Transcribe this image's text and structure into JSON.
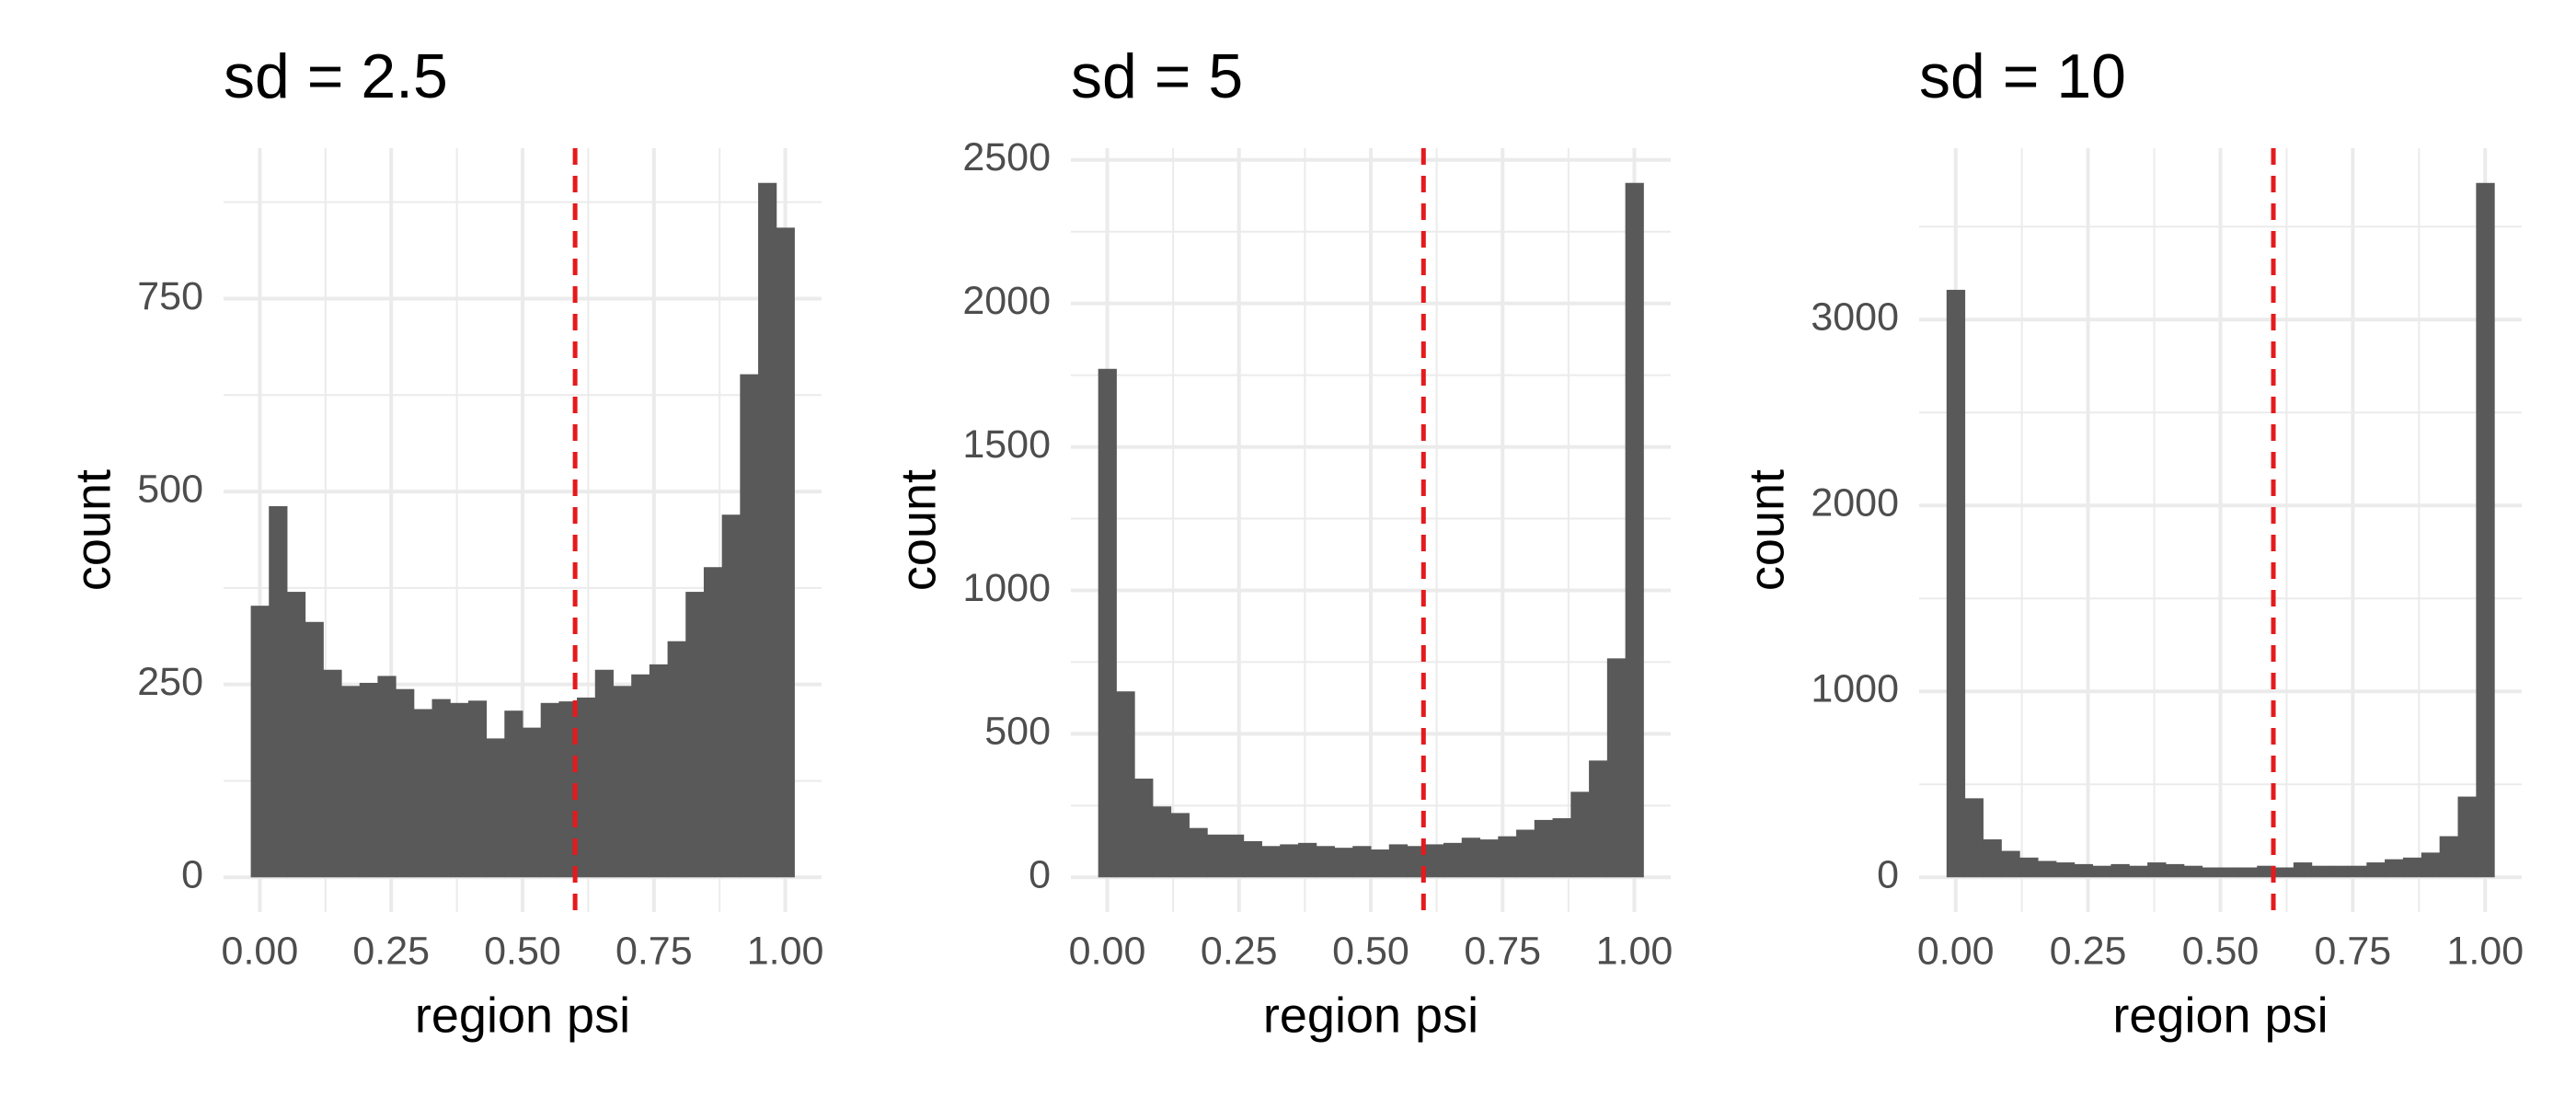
{
  "chart_data": [
    {
      "type": "histogram",
      "title": "sd = 2.5",
      "xlabel": "region psi",
      "ylabel": "count",
      "bins": [
        -0.0172,
        0.0172,
        0.0517,
        0.0862,
        0.1207,
        0.1552,
        0.1897,
        0.2241,
        0.2586,
        0.2931,
        0.3276,
        0.3621,
        0.3966,
        0.431,
        0.4655,
        0.5,
        0.5345,
        0.569,
        0.6034,
        0.6379,
        0.6724,
        0.7069,
        0.7414,
        0.7759,
        0.8103,
        0.8448,
        0.8793,
        0.9138,
        0.9483,
        0.9828,
        1.0172
      ],
      "values": [
        352,
        481,
        370,
        331,
        269,
        248,
        252,
        261,
        244,
        218,
        231,
        226,
        229,
        180,
        216,
        194,
        226,
        228,
        233,
        269,
        248,
        263,
        276,
        306,
        370,
        402,
        470,
        652,
        900,
        842
      ],
      "color": "#595959",
      "xlim": [
        -0.069,
        1.069
      ],
      "ylim": [
        -45,
        945
      ],
      "xticks": [
        {
          "value": 0,
          "label": "0.00"
        },
        0.25,
        {
          "value": 0.5,
          "label": "0.50"
        },
        0.75,
        {
          "value": 1,
          "label": "1.00"
        }
      ],
      "yticks": [
        0,
        250,
        500,
        750
      ],
      "grid": true,
      "minor_grid": true,
      "vline": {
        "x": 0.6,
        "color": "#e41a1c"
      }
    },
    {
      "type": "histogram",
      "title": "sd = 5",
      "xlabel": "region psi",
      "ylabel": "count",
      "bins": [
        -0.0172,
        0.0172,
        0.0517,
        0.0862,
        0.1207,
        0.1552,
        0.1897,
        0.2241,
        0.2586,
        0.2931,
        0.3276,
        0.3621,
        0.3966,
        0.431,
        0.4655,
        0.5,
        0.5345,
        0.569,
        0.6034,
        0.6379,
        0.6724,
        0.7069,
        0.7414,
        0.7759,
        0.8103,
        0.8448,
        0.8793,
        0.9138,
        0.9483,
        0.9828,
        1.0172
      ],
      "values": [
        1772,
        648,
        344,
        247,
        224,
        172,
        149,
        149,
        126,
        109,
        115,
        120,
        109,
        103,
        109,
        97,
        115,
        109,
        115,
        120,
        138,
        132,
        143,
        166,
        200,
        206,
        298,
        407,
        763,
        2420
      ],
      "color": "#595959",
      "xlim": [
        -0.069,
        1.069
      ],
      "ylim": [
        -121,
        2541
      ],
      "xticks": [
        {
          "value": 0,
          "label": "0.00"
        },
        0.25,
        {
          "value": 0.5,
          "label": "0.50"
        },
        0.75,
        {
          "value": 1,
          "label": "1.00"
        }
      ],
      "yticks": [
        0,
        500,
        1000,
        1500,
        2000,
        2500
      ],
      "grid": true,
      "minor_grid": true,
      "vline": {
        "x": 0.6,
        "color": "#e41a1c"
      }
    },
    {
      "type": "histogram",
      "title": "sd = 10",
      "xlabel": "region psi",
      "ylabel": "count",
      "bins": [
        -0.0172,
        0.0172,
        0.0517,
        0.0862,
        0.1207,
        0.1552,
        0.1897,
        0.2241,
        0.2586,
        0.2931,
        0.3276,
        0.3621,
        0.3966,
        0.431,
        0.4655,
        0.5,
        0.5345,
        0.569,
        0.6034,
        0.6379,
        0.6724,
        0.7069,
        0.7414,
        0.7759,
        0.8103,
        0.8448,
        0.8793,
        0.9138,
        0.9483,
        0.9828,
        1.0172
      ],
      "values": [
        3160,
        425,
        204,
        142,
        106,
        88,
        80,
        71,
        62,
        71,
        62,
        80,
        71,
        62,
        53,
        53,
        53,
        62,
        53,
        80,
        62,
        62,
        62,
        80,
        97,
        106,
        133,
        221,
        434,
        3735
      ],
      "color": "#595959",
      "xlim": [
        -0.069,
        1.069
      ],
      "ylim": [
        -187,
        3922
      ],
      "xticks": [
        {
          "value": 0,
          "label": "0.00"
        },
        0.25,
        {
          "value": 0.5,
          "label": "0.50"
        },
        0.75,
        {
          "value": 1,
          "label": "1.00"
        }
      ],
      "yticks": [
        0,
        1000,
        2000,
        3000
      ],
      "grid": true,
      "minor_grid": true,
      "vline": {
        "x": 0.6,
        "color": "#e41a1c"
      }
    }
  ]
}
